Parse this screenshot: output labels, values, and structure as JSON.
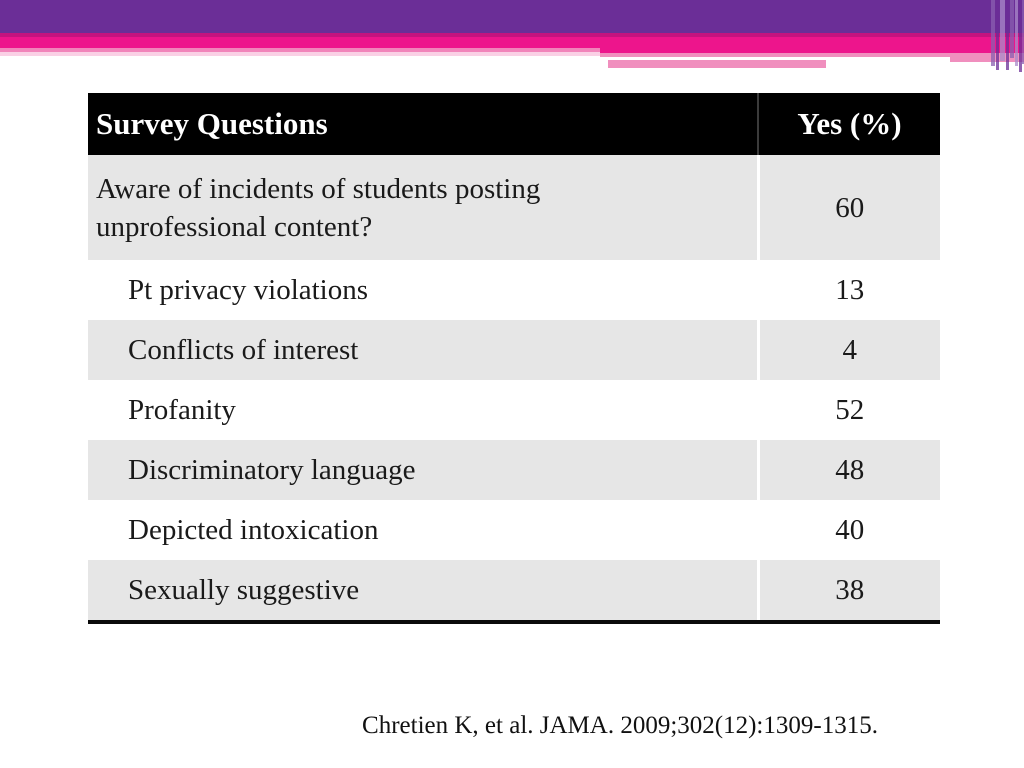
{
  "theme": {
    "purple": "#6B2E97",
    "magenta_dark": "#C5137F",
    "magenta": "#ED158C",
    "pink_mid": "#F184BA",
    "pink_light": "#FAD0E5",
    "pink_ribbon": "#F08FBE",
    "lavender": "#A98BC9",
    "purple_mid": "#8A5FB0",
    "header_bg": "#000000",
    "row_alt_bg": "#E6E6E6"
  },
  "table": {
    "headers": [
      "Survey Questions",
      "Yes (%)"
    ],
    "rows": [
      {
        "label": "Aware of incidents of students posting unprofessional content?",
        "value": "60"
      },
      {
        "label": "Pt privacy violations",
        "value": "13"
      },
      {
        "label": "Conflicts of interest",
        "value": "4"
      },
      {
        "label": "Profanity",
        "value": "52"
      },
      {
        "label": "Discriminatory language",
        "value": "48"
      },
      {
        "label": "Depicted intoxication",
        "value": "40"
      },
      {
        "label": "Sexually suggestive",
        "value": "38"
      }
    ]
  },
  "citation": "Chretien K, et al. JAMA. 2009;302(12):1309-1315.",
  "chart_data": {
    "type": "table",
    "title": "Survey Questions vs Yes (%)",
    "columns": [
      "Survey Questions",
      "Yes (%)"
    ],
    "categories": [
      "Aware of incidents of students posting unprofessional content?",
      "Pt privacy violations",
      "Conflicts of interest",
      "Profanity",
      "Discriminatory language",
      "Depicted intoxication",
      "Sexually suggestive"
    ],
    "values": [
      60,
      13,
      4,
      52,
      48,
      40,
      38
    ]
  }
}
